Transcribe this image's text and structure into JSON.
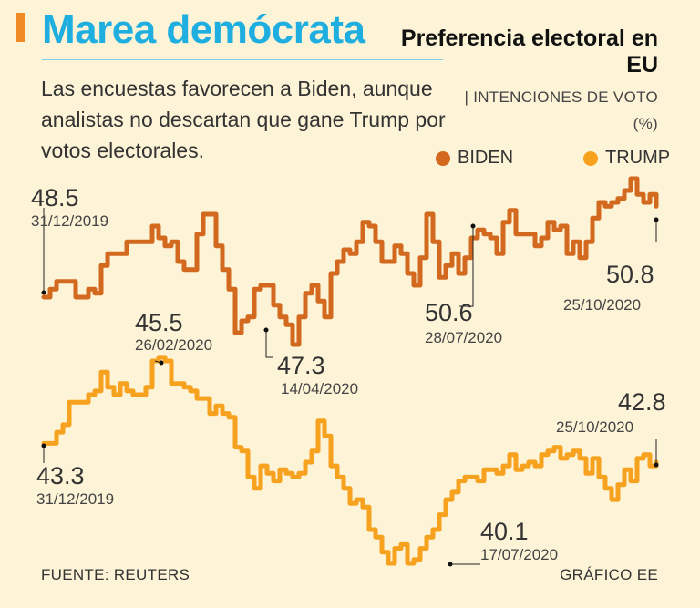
{
  "header": {
    "title": "Marea demócrata",
    "subtitle": "Las encuestas favorecen a Biden, aunque analistas no descartan que gane Trump por votos electorales.",
    "side_title": "Preferencia electoral en EU",
    "side_subtitle": "| INTENCIONES DE VOTO (%)"
  },
  "footer": {
    "source": "FUENTE: REUTERS",
    "credit": "GRÁFICO EE"
  },
  "colors": {
    "background": "#fdf3d6",
    "title": "#1eaee0",
    "accent": "#f08a24",
    "biden": "#d2691e",
    "trump": "#f7a21e"
  },
  "chart_data": {
    "type": "line",
    "title": "Preferencia electoral en EU",
    "ylabel": "Intenciones de voto (%)",
    "x_range": [
      "31/12/2019",
      "25/10/2020"
    ],
    "series": [
      {
        "name": "BIDEN",
        "color": "#d2691e",
        "values": [
          48.5,
          48.7,
          48.9,
          48.9,
          48.9,
          48.5,
          48.5,
          48.7,
          48.6,
          49.3,
          49.6,
          49.6,
          49.6,
          49.9,
          49.9,
          49.9,
          49.9,
          50.3,
          50.0,
          49.8,
          49.9,
          49.4,
          49.2,
          49.2,
          50.1,
          50.6,
          50.6,
          49.8,
          49.2,
          48.7,
          47.6,
          47.9,
          48.0,
          48.7,
          48.8,
          48.8,
          48.3,
          48.0,
          47.8,
          47.3,
          48.0,
          48.6,
          48.8,
          48.4,
          48.0,
          49.1,
          49.4,
          49.7,
          49.6,
          49.9,
          50.4,
          50.3,
          49.9,
          49.4,
          49.4,
          49.8,
          49.6,
          49.1,
          48.8,
          49.5,
          50.6,
          49.9,
          49.0,
          49.3,
          49.6,
          49.1,
          49.5,
          50.0,
          50.2,
          50.1,
          50.0,
          49.6,
          50.4,
          50.7,
          50.1,
          50.1,
          50.1,
          49.8,
          50.0,
          50.4,
          50.2,
          50.3,
          49.6,
          49.9,
          49.5,
          49.9,
          50.5,
          50.9,
          50.8,
          50.9,
          51.0,
          51.2,
          51.5,
          51.1,
          50.9,
          51.1,
          50.8
        ],
        "labels": [
          {
            "value": "48.5",
            "date": "31/12/2019"
          },
          {
            "value": "47.3",
            "date": "14/04/2020"
          },
          {
            "value": "50.6",
            "date": "28/07/2020"
          },
          {
            "value": "50.8",
            "date": "25/10/2020"
          }
        ]
      },
      {
        "name": "TRUMP",
        "color": "#f7a21e",
        "values": [
          43.3,
          43.3,
          43.6,
          43.8,
          44.4,
          44.4,
          44.4,
          44.6,
          44.7,
          45.2,
          44.8,
          44.6,
          44.9,
          44.7,
          44.6,
          44.6,
          44.8,
          45.5,
          45.6,
          45.5,
          44.9,
          44.9,
          44.8,
          44.7,
          44.5,
          44.5,
          44.1,
          44.3,
          44.1,
          44.0,
          43.2,
          43.1,
          42.4,
          42.1,
          42.7,
          42.5,
          42.3,
          42.6,
          42.5,
          42.4,
          42.5,
          42.8,
          43.1,
          43.9,
          43.5,
          42.7,
          42.4,
          42.1,
          41.7,
          41.8,
          41.6,
          41.0,
          40.8,
          40.4,
          40.1,
          40.5,
          40.6,
          40.1,
          40.2,
          40.5,
          40.8,
          41.0,
          41.4,
          41.8,
          42.0,
          42.3,
          42.4,
          42.4,
          42.3,
          42.6,
          42.6,
          42.5,
          42.7,
          43.0,
          42.6,
          42.7,
          42.8,
          42.7,
          43.0,
          43.1,
          43.2,
          42.9,
          43.0,
          43.1,
          42.9,
          42.5,
          42.9,
          42.4,
          42.1,
          41.8,
          42.2,
          42.6,
          42.3,
          42.9,
          43.0,
          42.7,
          42.8
        ],
        "labels": [
          {
            "value": "45.5",
            "date": "26/02/2020"
          },
          {
            "value": "43.3",
            "date": "31/12/2019"
          },
          {
            "value": "40.1",
            "date": "17/07/2020"
          },
          {
            "value": "42.8",
            "date": "25/10/2020"
          }
        ]
      }
    ],
    "legend": [
      "BIDEN",
      "TRUMP"
    ],
    "grid": false
  }
}
